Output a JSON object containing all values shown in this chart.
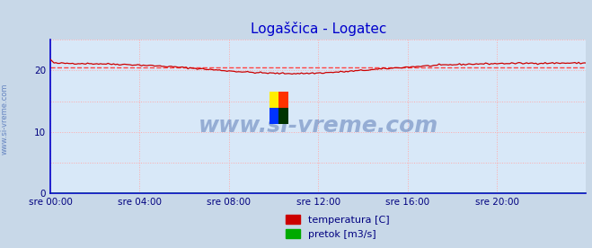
{
  "title": "Logaščica - Logatec",
  "title_color": "#0000cc",
  "title_fontsize": 11,
  "bg_color": "#d8e8f8",
  "fig_bg_color": "#c8d8e8",
  "xlabel_color": "#000080",
  "ylabel_ticks": [
    0,
    10,
    20
  ],
  "xlim": [
    0,
    288
  ],
  "ylim": [
    0,
    25
  ],
  "avg_temp": 20.5,
  "avg_line_color": "#ff4444",
  "avg_line_style": "dashed",
  "temp_color": "#cc0000",
  "pretok_color": "#00aa00",
  "watermark_text": "www.si-vreme.com",
  "watermark_color": "#4466aa",
  "sidebar_text": "www.si-vreme.com",
  "sidebar_color": "#5577bb",
  "x_tick_labels": [
    "sre 00:00",
    "sre 04:00",
    "sre 08:00",
    "sre 12:00",
    "sre 16:00",
    "sre 20:00"
  ],
  "x_tick_positions": [
    0,
    48,
    96,
    144,
    192,
    240
  ],
  "grid_color": "#ffaaaa",
  "legend_labels": [
    "temperatura [C]",
    "pretok [m3/s]"
  ],
  "legend_colors": [
    "#cc0000",
    "#00aa00"
  ],
  "spine_color": "#0000cc",
  "arrow_color": "#cc0000"
}
